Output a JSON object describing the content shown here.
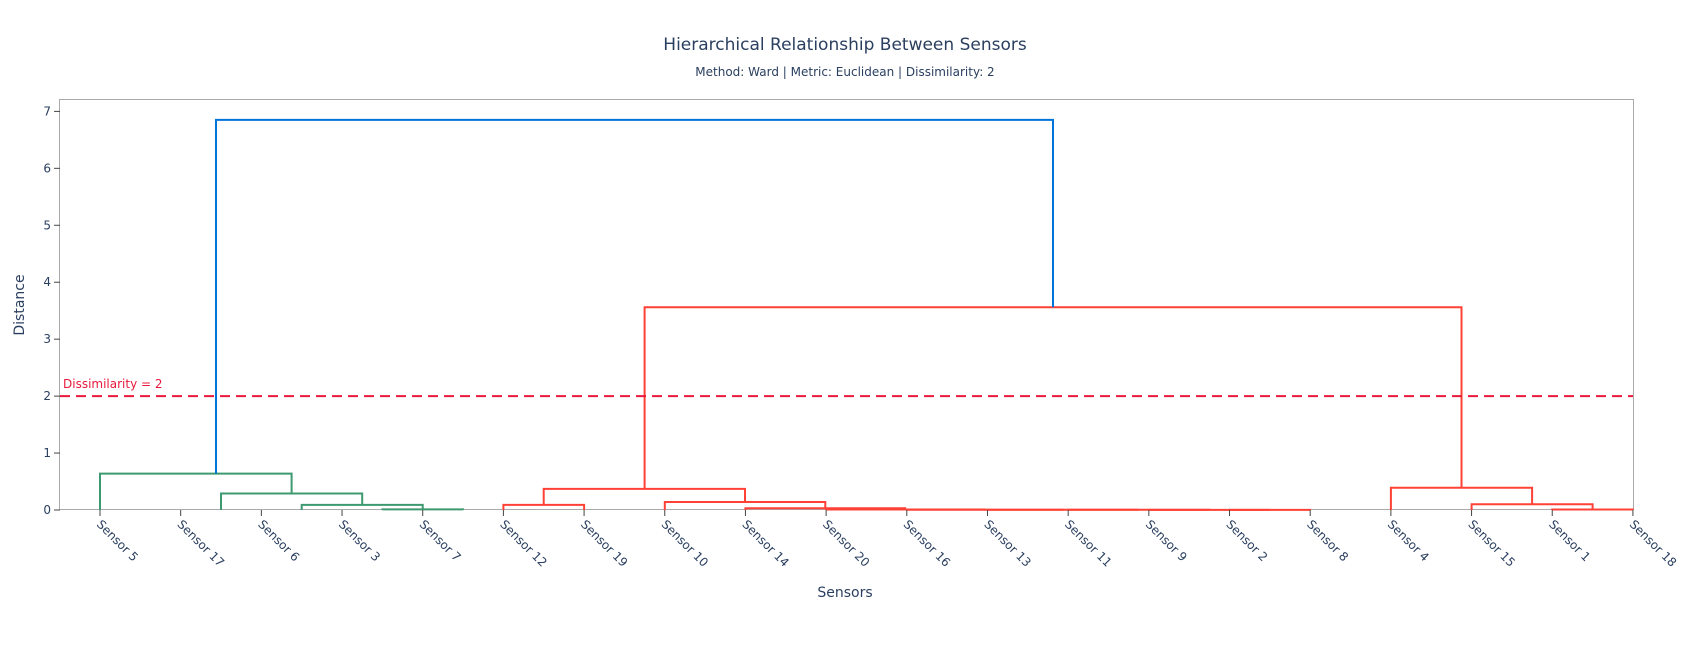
{
  "chart_data": {
    "type": "dendrogram",
    "title": "Hierarchical Relationship Between Sensors",
    "subtitle": "Method: Ward | Metric: Euclidean | Dissimilarity: 2",
    "xlabel": "Sensors",
    "ylabel": "Distance",
    "ylim": [
      0,
      7.2
    ],
    "yticks": [
      0,
      1,
      2,
      3,
      4,
      5,
      6,
      7
    ],
    "grid": false,
    "leaves": [
      "Sensor 5",
      "Sensor 17",
      "Sensor 6",
      "Sensor 3",
      "Sensor 7",
      "Sensor 12",
      "Sensor 19",
      "Sensor 10",
      "Sensor 14",
      "Sensor 20",
      "Sensor 16",
      "Sensor 13",
      "Sensor 11",
      "Sensor 9",
      "Sensor 2",
      "Sensor 8",
      "Sensor 4",
      "Sensor 15",
      "Sensor 1",
      "Sensor 18"
    ],
    "threshold": {
      "value": 2,
      "label": "Dissimilarity = 2",
      "color": "#e8193c"
    },
    "colors": {
      "green": "#3d9970",
      "red": "#ff4136",
      "blue": "#0074d9"
    },
    "links": [
      {
        "x": [
          3.5,
          3.5,
          4.5,
          4.5
        ],
        "y": [
          0,
          0.01,
          0.01,
          0
        ],
        "color": "green"
      },
      {
        "x": [
          2.5,
          2.5,
          4.0,
          4.0
        ],
        "y": [
          0,
          0.09,
          0.09,
          0.01
        ],
        "color": "green"
      },
      {
        "x": [
          1.5,
          1.5,
          3.25,
          3.25
        ],
        "y": [
          0,
          0.29,
          0.29,
          0.09
        ],
        "color": "green"
      },
      {
        "x": [
          0,
          0,
          2.375,
          2.375
        ],
        "y": [
          0,
          0.64,
          0.64,
          0.29
        ],
        "color": "green"
      },
      {
        "x": [
          5,
          5,
          6,
          6
        ],
        "y": [
          0,
          0.09,
          0.09,
          0
        ],
        "color": "red"
      },
      {
        "x": [
          14,
          14,
          15,
          15
        ],
        "y": [
          0,
          0.001,
          0.001,
          0
        ],
        "color": "red"
      },
      {
        "x": [
          13,
          13,
          14.5,
          14.5
        ],
        "y": [
          0,
          0.002,
          0.002,
          0.001
        ],
        "color": "red"
      },
      {
        "x": [
          12,
          12,
          13.75,
          13.75
        ],
        "y": [
          0,
          0.003,
          0.003,
          0.002
        ],
        "color": "red"
      },
      {
        "x": [
          11,
          11,
          12.875,
          12.875
        ],
        "y": [
          0,
          0.004,
          0.004,
          0.003
        ],
        "color": "red"
      },
      {
        "x": [
          10,
          10,
          11.94,
          11.94
        ],
        "y": [
          0,
          0.006,
          0.006,
          0.004
        ],
        "color": "red"
      },
      {
        "x": [
          9,
          9,
          10.97,
          10.97
        ],
        "y": [
          0,
          0.008,
          0.008,
          0.006
        ],
        "color": "red"
      },
      {
        "x": [
          8,
          8,
          9.98,
          9.98
        ],
        "y": [
          0,
          0.03,
          0.03,
          0.008
        ],
        "color": "red"
      },
      {
        "x": [
          7,
          7,
          8.99,
          8.99
        ],
        "y": [
          0,
          0.14,
          0.14,
          0.03
        ],
        "color": "red"
      },
      {
        "x": [
          5.5,
          5.5,
          7.995,
          7.995
        ],
        "y": [
          0.09,
          0.37,
          0.37,
          0.14
        ],
        "color": "red"
      },
      {
        "x": [
          18,
          18,
          19,
          19
        ],
        "y": [
          0,
          0.008,
          0.008,
          0
        ],
        "color": "red"
      },
      {
        "x": [
          17,
          17,
          18.5,
          18.5
        ],
        "y": [
          0,
          0.1,
          0.1,
          0.008
        ],
        "color": "red"
      },
      {
        "x": [
          16,
          16,
          17.75,
          17.75
        ],
        "y": [
          0,
          0.39,
          0.39,
          0.1
        ],
        "color": "red"
      },
      {
        "x": [
          6.75,
          6.75,
          16.875,
          16.875
        ],
        "y": [
          0.37,
          3.56,
          3.56,
          0.39
        ],
        "color": "red"
      },
      {
        "x": [
          1.4375,
          1.4375,
          11.8125,
          11.8125
        ],
        "y": [
          0.64,
          6.85,
          6.85,
          3.56
        ],
        "color": "blue"
      }
    ]
  }
}
